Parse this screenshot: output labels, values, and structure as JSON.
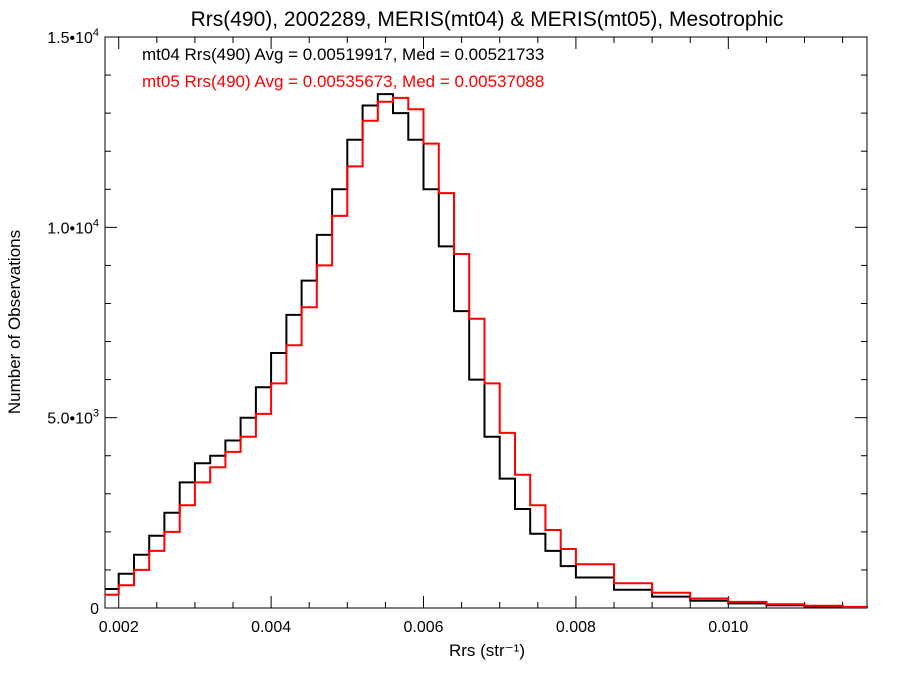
{
  "chart_data": {
    "type": "line",
    "title": "Rrs(490), 2002289, MERIS(mt04) & MERIS(mt05), Mesotrophic",
    "xlabel": "Rrs (str⁻¹)",
    "ylabel": "Number of Observations",
    "xlim": [
      0.00182,
      0.01182
    ],
    "ylim": [
      0,
      15000
    ],
    "x_ticks": [
      {
        "value": 0.002,
        "label": "0.002"
      },
      {
        "value": 0.004,
        "label": "0.004"
      },
      {
        "value": 0.006,
        "label": "0.006"
      },
      {
        "value": 0.008,
        "label": "0.008"
      },
      {
        "value": 0.01,
        "label": "0.010"
      }
    ],
    "y_ticks": [
      {
        "value": 0,
        "label": "0",
        "exp": ""
      },
      {
        "value": 5000,
        "label": "5.0•10",
        "exp": "3"
      },
      {
        "value": 10000,
        "label": "1.0•10",
        "exp": "4"
      },
      {
        "value": 15000,
        "label": "1.5•10",
        "exp": "4"
      }
    ],
    "x_minor_step": 0.0005,
    "y_minor_step": 1000,
    "grid": false,
    "legend_text": [
      {
        "text": "mt04 Rrs(490) Avg = 0.00519917, Med = 0.00521733",
        "color": "#000000"
      },
      {
        "text": "mt05 Rrs(490) Avg = 0.00535673, Med = 0.00537088",
        "color": "#ff0000"
      }
    ],
    "series": [
      {
        "color": "#000000",
        "x": [
          0.00182,
          0.002,
          0.0022,
          0.0024,
          0.0026,
          0.0028,
          0.003,
          0.0032,
          0.0034,
          0.0036,
          0.0038,
          0.004,
          0.0042,
          0.0044,
          0.0046,
          0.0048,
          0.005,
          0.0052,
          0.0054,
          0.0056,
          0.0058,
          0.006,
          0.0062,
          0.0064,
          0.0066,
          0.0068,
          0.007,
          0.0072,
          0.0074,
          0.0076,
          0.0078,
          0.008,
          0.0085,
          0.009,
          0.0095,
          0.01,
          0.0105,
          0.011,
          0.0115,
          0.01182
        ],
        "y": [
          500,
          900,
          1400,
          1900,
          2500,
          3300,
          3800,
          4000,
          4400,
          5000,
          5800,
          6700,
          7700,
          8600,
          9800,
          11000,
          12300,
          13200,
          13500,
          13000,
          12300,
          11000,
          9500,
          7800,
          6000,
          4500,
          3400,
          2600,
          1950,
          1500,
          1100,
          800,
          480,
          300,
          190,
          120,
          70,
          40,
          20,
          10
        ]
      },
      {
        "color": "#ff0000",
        "x": [
          0.00182,
          0.002,
          0.0022,
          0.0024,
          0.0026,
          0.0028,
          0.003,
          0.0032,
          0.0034,
          0.0036,
          0.0038,
          0.004,
          0.0042,
          0.0044,
          0.0046,
          0.0048,
          0.005,
          0.0052,
          0.0054,
          0.0056,
          0.0058,
          0.006,
          0.0062,
          0.0064,
          0.0066,
          0.0068,
          0.007,
          0.0072,
          0.0074,
          0.0076,
          0.0078,
          0.008,
          0.0085,
          0.009,
          0.0095,
          0.01,
          0.0105,
          0.011,
          0.0115,
          0.01182
        ],
        "y": [
          350,
          600,
          1000,
          1500,
          2000,
          2700,
          3300,
          3700,
          4100,
          4500,
          5100,
          5900,
          6900,
          7900,
          9000,
          10300,
          11600,
          12800,
          13300,
          13400,
          13100,
          12200,
          10900,
          9300,
          7600,
          5900,
          4600,
          3500,
          2700,
          2050,
          1550,
          1150,
          650,
          400,
          250,
          160,
          100,
          60,
          30,
          15
        ]
      }
    ]
  }
}
